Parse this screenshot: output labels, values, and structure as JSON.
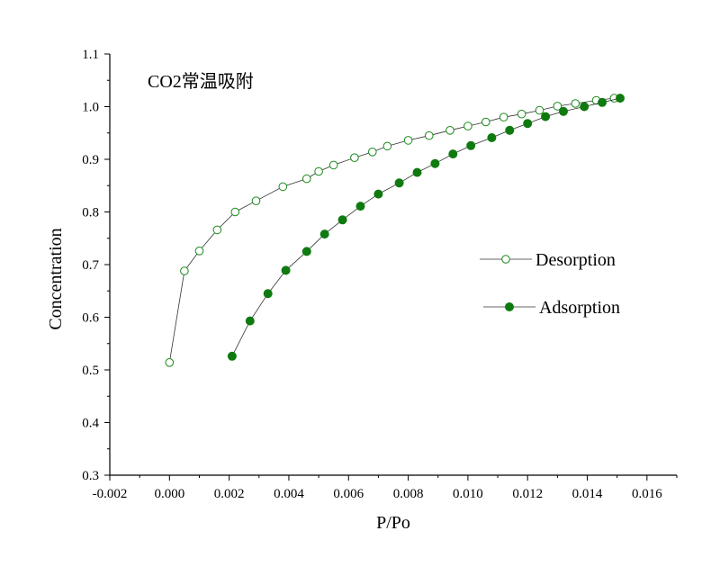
{
  "chart_data": {
    "type": "scatter",
    "title": "",
    "annotation": "CO2常温吸附",
    "xlabel": "P/Po",
    "ylabel": "Concentration",
    "xlim": [
      -0.002,
      0.017
    ],
    "ylim": [
      0.3,
      1.1
    ],
    "xticks": [
      -0.002,
      0.0,
      0.002,
      0.004,
      0.006,
      0.008,
      0.01,
      0.012,
      0.014,
      0.016
    ],
    "xtick_labels": [
      "-0.002",
      "0.000",
      "0.002",
      "0.004",
      "0.006",
      "0.008",
      "0.010",
      "0.012",
      "0.014",
      "0.016"
    ],
    "yticks": [
      0.3,
      0.4,
      0.5,
      0.6,
      0.7,
      0.8,
      0.9,
      1.0,
      1.1
    ],
    "ytick_labels": [
      "0.3",
      "0.4",
      "0.5",
      "0.6",
      "0.7",
      "0.8",
      "0.9",
      "1.0",
      "1.1"
    ],
    "grid": false,
    "legend_position": "right",
    "series": [
      {
        "name": "Desorption",
        "marker": "open-circle",
        "color": "#1a8a1a",
        "x": [
          0.0,
          0.0005,
          0.001,
          0.0016,
          0.0022,
          0.0029,
          0.0038,
          0.0046,
          0.005,
          0.0055,
          0.0062,
          0.0068,
          0.0073,
          0.008,
          0.0087,
          0.0094,
          0.01,
          0.0106,
          0.0112,
          0.0118,
          0.0124,
          0.013,
          0.0136,
          0.0143,
          0.0149
        ],
        "y": [
          0.514,
          0.688,
          0.726,
          0.766,
          0.8,
          0.821,
          0.848,
          0.863,
          0.877,
          0.889,
          0.903,
          0.914,
          0.925,
          0.936,
          0.945,
          0.955,
          0.963,
          0.971,
          0.98,
          0.986,
          0.993,
          1.001,
          1.006,
          1.012,
          1.016
        ]
      },
      {
        "name": "Adsorption",
        "marker": "filled-circle",
        "color": "#0f7a0f",
        "x": [
          0.0021,
          0.0027,
          0.0033,
          0.0039,
          0.0046,
          0.0052,
          0.0058,
          0.0064,
          0.007,
          0.0077,
          0.0083,
          0.0089,
          0.0095,
          0.0101,
          0.0108,
          0.0114,
          0.012,
          0.0126,
          0.0132,
          0.0139,
          0.0145,
          0.0151
        ],
        "y": [
          0.526,
          0.593,
          0.645,
          0.689,
          0.725,
          0.758,
          0.785,
          0.811,
          0.834,
          0.855,
          0.875,
          0.892,
          0.91,
          0.926,
          0.941,
          0.955,
          0.968,
          0.981,
          0.991,
          1.0,
          1.008,
          1.016
        ]
      }
    ]
  }
}
